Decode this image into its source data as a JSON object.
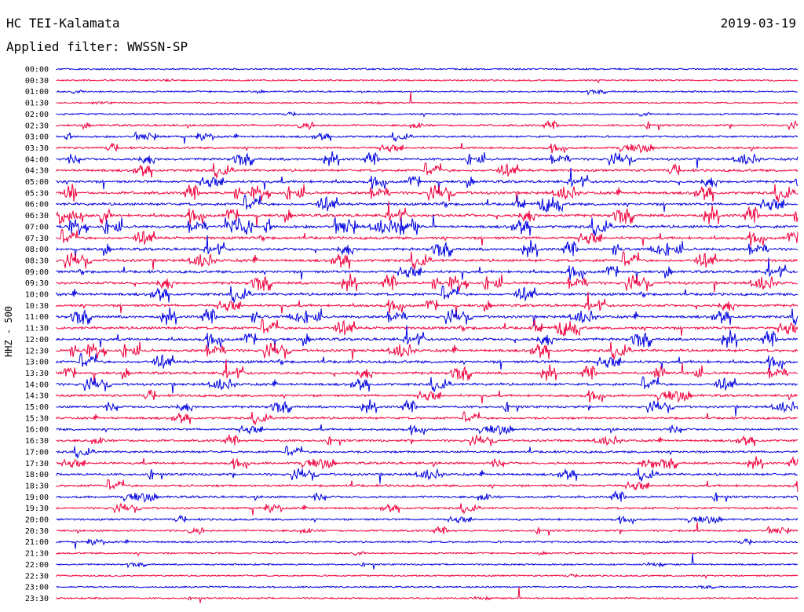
{
  "header": {
    "station": "HC TEI-Kalamata",
    "date": "2019-03-19",
    "filter": "Applied filter: WWSSN-SP"
  },
  "chart_data": {
    "type": "line",
    "title": "HC TEI-Kalamata",
    "ylabel": "HHZ - 500",
    "row_labels": [
      "00:00",
      "00:30",
      "01:00",
      "01:30",
      "02:00",
      "02:30",
      "03:00",
      "03:30",
      "04:00",
      "04:30",
      "05:00",
      "05:30",
      "06:00",
      "06:30",
      "07:00",
      "07:30",
      "08:00",
      "08:30",
      "09:00",
      "09:30",
      "10:00",
      "10:30",
      "11:00",
      "11:30",
      "12:00",
      "12:30",
      "13:00",
      "13:30",
      "14:00",
      "14:30",
      "15:00",
      "15:30",
      "16:00",
      "16:30",
      "17:00",
      "17:30",
      "18:00",
      "18:30",
      "19:00",
      "19:30",
      "20:00",
      "20:30",
      "21:00",
      "21:30",
      "22:00",
      "22:30",
      "23:00",
      "23:30"
    ],
    "row_colors": [
      "#0000e0",
      "#f0003c"
    ],
    "activity_level": [
      0.15,
      0.12,
      0.18,
      0.08,
      0.2,
      0.45,
      0.45,
      0.55,
      0.75,
      0.8,
      0.85,
      0.95,
      0.95,
      1.0,
      1.0,
      0.9,
      0.9,
      0.95,
      0.9,
      0.95,
      0.9,
      0.85,
      0.9,
      0.95,
      0.95,
      0.95,
      0.9,
      0.85,
      0.8,
      0.75,
      0.7,
      0.65,
      0.6,
      0.6,
      0.6,
      0.65,
      0.7,
      0.65,
      0.6,
      0.5,
      0.45,
      0.4,
      0.35,
      0.2,
      0.18,
      0.15,
      0.12,
      0.12
    ],
    "grid": false
  }
}
